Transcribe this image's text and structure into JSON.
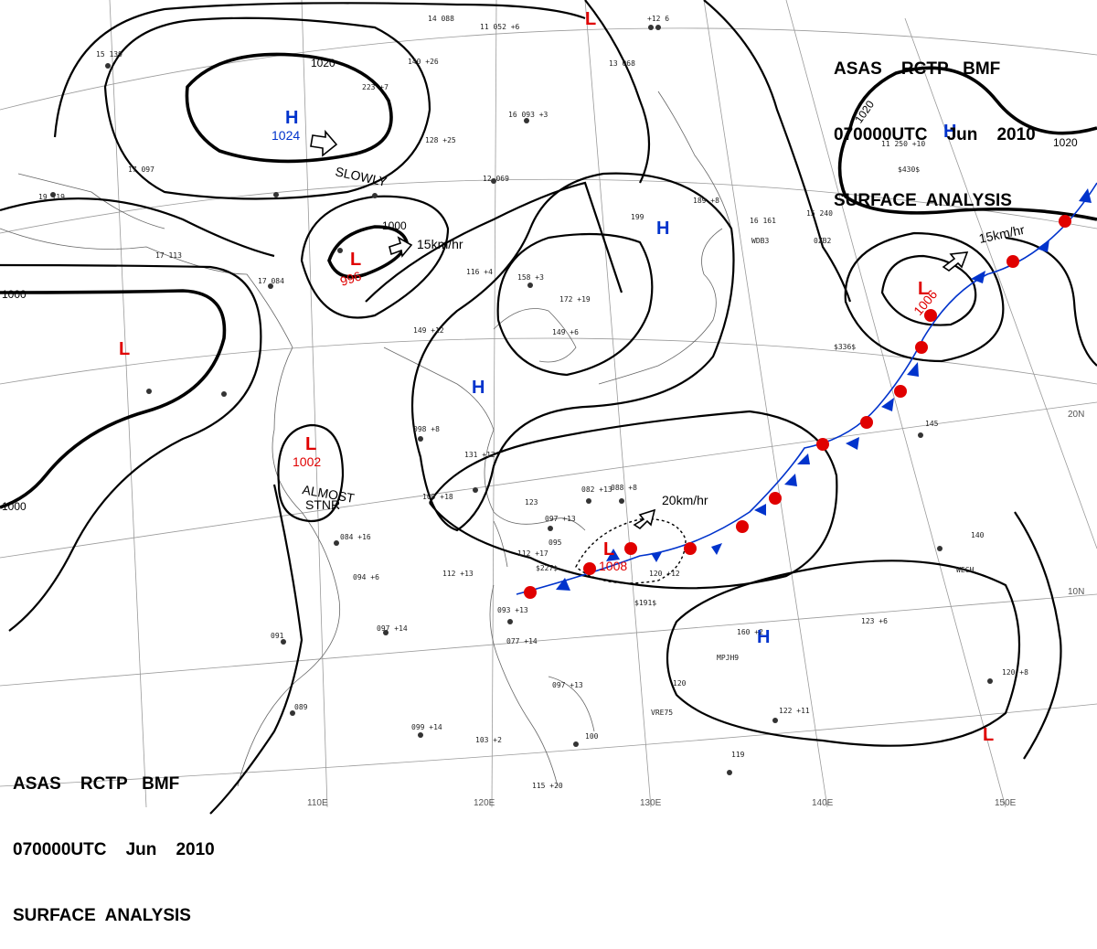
{
  "header": {
    "line1": "ASAS    RCTP   BMF",
    "line2": "070000UTC    Jun    2010",
    "line3": "SURFACE  ANALYSIS"
  },
  "colors": {
    "low": "#e00000",
    "high": "#0033cc",
    "isobar": "#000000",
    "grid": "#9a9a9a",
    "coast": "#666666"
  },
  "longitude_labels": [
    "110E",
    "120E",
    "130E",
    "140E",
    "150E"
  ],
  "latitude_labels": [
    "20N",
    "10N"
  ],
  "isobar_labels": [
    "1020",
    "1020",
    "1020",
    "1000",
    "1000",
    "1000"
  ],
  "systems": [
    {
      "type": "H",
      "pressure": "1024",
      "motion": "SLOWLY"
    },
    {
      "type": "L",
      "pressure": "996",
      "motion": "15km/hr"
    },
    {
      "type": "L",
      "pressure": "1002",
      "motion_lines": [
        "ALMOST",
        "STNR"
      ]
    },
    {
      "type": "L",
      "pressure": "1006",
      "motion": "15km/hr"
    },
    {
      "type": "L",
      "pressure": "1008",
      "motion": "20km/hr"
    },
    {
      "type": "L"
    },
    {
      "type": "L"
    },
    {
      "type": "L"
    },
    {
      "type": "H"
    },
    {
      "type": "H"
    },
    {
      "type": "H"
    },
    {
      "type": "H"
    }
  ],
  "stations": [
    "14 088",
    "+12 6",
    "15 139",
    "17 097",
    "19 119",
    "223 +7",
    "128 +25",
    "16 093 +3",
    "12 069",
    "13 068",
    "11 052 +6",
    "199",
    "189 +8",
    "16 161",
    "15 240",
    "11 250 +10",
    "$430$",
    "17 113",
    "17 084",
    "140 +26",
    "116 +4",
    "158 +3",
    "172 +19",
    "149 +6",
    "149 +12",
    "098 +8",
    "131 +12",
    "109 +18",
    "123",
    "097 +13",
    "095",
    "112 +17",
    "$227$",
    "112 +13",
    "082 +13",
    "088 +8",
    "120 +12",
    "$191$",
    "084 +16",
    "094 +6",
    "097 +14",
    "091",
    "093 +13",
    "077 +14",
    "097 +13",
    "120",
    "VRE75",
    "160 +2",
    "MPJH9",
    "123 +6",
    "145",
    "140",
    "WECH",
    "120 +8",
    "122 +11",
    "119",
    "099 +14",
    "103 +2",
    "100",
    "115 +20",
    "089",
    "$336$",
    "WDB3",
    "0ZB2"
  ]
}
